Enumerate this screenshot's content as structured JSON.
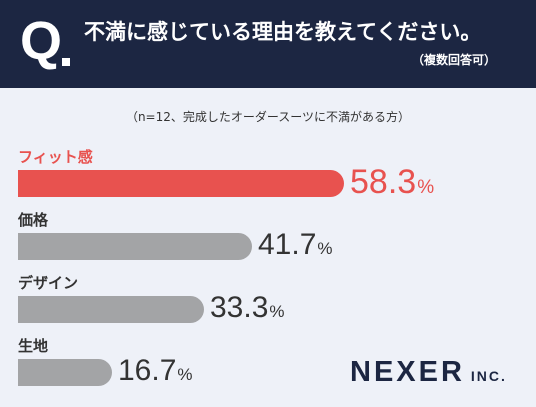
{
  "header": {
    "q_letter": "Q",
    "question": "不満に感じている理由を教えてください。",
    "note": "（複数回答可）"
  },
  "sample_note": "（n=12、完成したオーダースーツに不満がある方）",
  "colors": {
    "header_bg": "#1c2642",
    "highlight": "#e8524f",
    "bar": "#a3a4a6",
    "background": "#eef1f8"
  },
  "chart_data": {
    "type": "bar",
    "orientation": "horizontal",
    "categories": [
      "フィット感",
      "価格",
      "デザイン",
      "生地"
    ],
    "values": [
      58.3,
      41.7,
      33.3,
      16.7
    ],
    "value_labels": [
      "58.3",
      "41.7",
      "33.3",
      "16.7"
    ],
    "unit": "%",
    "highlight_index": 0,
    "xlim": [
      0,
      80
    ],
    "grid": false
  },
  "logo": {
    "brand": "NEXER",
    "suffix": "INC."
  }
}
